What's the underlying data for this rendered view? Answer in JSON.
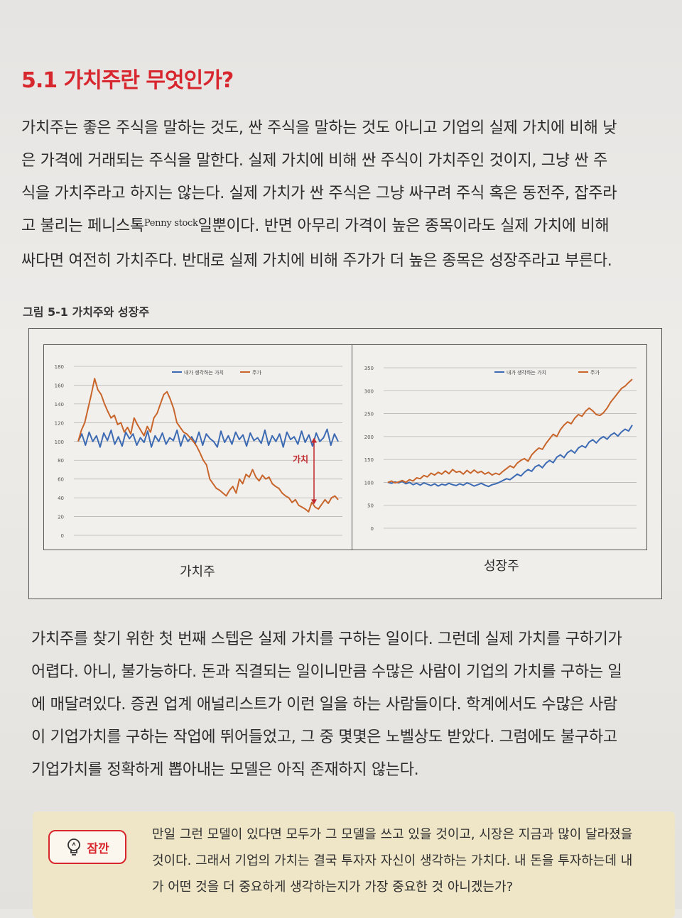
{
  "heading": "5.1 가치주란 무엇인가?",
  "para1": [
    "가치주는 좋은 주식을 말하는 것도, 싼 주식을 말하는 것도 아니고 기업의 실제 가치에 비해 낮",
    "은 가격에 거래되는 주식을 말한다. 실제 가치에 비해 싼 주식이 가치주인 것이지, 그냥 싼 주",
    "식을 가치주라고 하지는 않는다. 실제 가치가 싼 주식은 그냥 싸구려 주식 혹은 동전주, 잡주라"
  ],
  "para1_line4": {
    "before": "고 불리는 페니스톡",
    "sup": "Penny stock",
    "after": "일뿐이다. 반면 아무리 가격이 높은 종목이라도 실제 가치에 비해"
  },
  "para1_line5": "싸다면 여전히 가치주다. 반대로 실제 가치에 비해 주가가 더 높은 종목은 성장주라고 부른다.",
  "figure_caption": "그림 5-1 가치주와 성장주",
  "chart_data": [
    {
      "type": "line",
      "label": "가치주",
      "annotation": "가치",
      "ylim": [
        0,
        180
      ],
      "yticks": [
        0,
        20,
        40,
        60,
        80,
        100,
        120,
        140,
        160,
        180
      ],
      "legend": "top",
      "series": [
        {
          "name": "내가 생각하는 가치",
          "color": "#3d6bb3",
          "values": [
            100,
            108,
            96,
            110,
            100,
            106,
            94,
            109,
            101,
            112,
            97,
            105,
            95,
            110,
            103,
            108,
            96,
            104,
            99,
            111,
            94,
            106,
            100,
            109,
            97,
            104,
            101,
            112,
            95,
            107,
            100,
            105,
            98,
            110,
            96,
            108,
            103,
            100,
            94,
            111,
            99,
            106,
            97,
            110,
            102,
            107,
            95,
            109,
            101,
            104,
            98,
            112,
            96,
            106,
            100,
            108,
            94,
            110,
            102,
            105,
            97,
            111,
            99,
            107,
            95,
            109,
            100,
            104,
            113,
            96,
            108,
            100
          ]
        },
        {
          "name": "주가",
          "color": "#c8652a",
          "values": [
            100,
            112,
            120,
            135,
            150,
            167,
            155,
            150,
            140,
            132,
            125,
            128,
            118,
            120,
            110,
            115,
            108,
            125,
            118,
            112,
            106,
            116,
            110,
            125,
            130,
            140,
            150,
            153,
            145,
            135,
            120,
            115,
            110,
            108,
            104,
            100,
            95,
            88,
            80,
            75,
            60,
            55,
            50,
            48,
            45,
            42,
            48,
            52,
            45,
            60,
            55,
            65,
            62,
            70,
            62,
            58,
            64,
            60,
            62,
            55,
            52,
            50,
            45,
            42,
            40,
            35,
            38,
            32,
            30,
            28,
            25,
            35,
            30,
            28,
            33,
            38,
            34,
            40,
            42,
            38
          ]
        }
      ]
    },
    {
      "type": "line",
      "label": "성장주",
      "ylim": [
        0,
        350
      ],
      "yticks": [
        0,
        50,
        100,
        150,
        200,
        250,
        300,
        350
      ],
      "legend": "top",
      "series": [
        {
          "name": "내가 생각하는 가치",
          "color": "#3d6bb3",
          "values": [
            100,
            98,
            101,
            99,
            102,
            97,
            100,
            95,
            98,
            94,
            99,
            96,
            93,
            97,
            92,
            96,
            94,
            98,
            95,
            93,
            97,
            94,
            99,
            96,
            92,
            95,
            98,
            94,
            91,
            95,
            97,
            100,
            104,
            108,
            106,
            112,
            118,
            114,
            122,
            128,
            124,
            134,
            138,
            132,
            142,
            148,
            143,
            155,
            160,
            154,
            165,
            170,
            164,
            175,
            180,
            176,
            188,
            193,
            186,
            195,
            200,
            194,
            203,
            208,
            201,
            210,
            216,
            212,
            225
          ]
        },
        {
          "name": "주가",
          "color": "#c8652a",
          "values": [
            100,
            103,
            99,
            101,
            104,
            100,
            106,
            103,
            110,
            108,
            115,
            112,
            120,
            116,
            122,
            118,
            125,
            119,
            128,
            122,
            124,
            118,
            126,
            120,
            127,
            121,
            124,
            118,
            122,
            116,
            120,
            117,
            124,
            130,
            136,
            132,
            142,
            148,
            152,
            146,
            160,
            168,
            175,
            172,
            185,
            195,
            205,
            200,
            215,
            225,
            232,
            228,
            240,
            248,
            244,
            255,
            262,
            256,
            248,
            246,
            252,
            262,
            275,
            285,
            295,
            305,
            310,
            318,
            325
          ]
        }
      ]
    }
  ],
  "para2": [
    "가치주를 찾기 위한 첫 번째 스텝은 실제 가치를 구하는 일이다. 그런데 실제 가치를 구하기가",
    "어렵다. 아니, 불가능하다. 돈과 직결되는 일이니만큼 수많은 사람이 기업의 가치를 구하는 일",
    "에 매달려있다. 증권 업계 애널리스트가 이런 일을 하는 사람들이다. 학계에서도 수많은 사람",
    "이 기업가치를 구하는 작업에 뛰어들었고, 그 중 몇몇은 노벨상도 받았다. 그럼에도 불구하고",
    "기업가치를 정확하게 뽑아내는 모델은 아직 존재하지 않는다."
  ],
  "tip": {
    "badge": "잠깐",
    "icon": "lightbulb-icon",
    "lines": [
      "만일 그런 모델이 있다면 모두가 그 모델을 쓰고 있을 것이고, 시장은 지금과 많이 달라졌을",
      "것이다. 그래서 기업의 가치는 결국 투자자 자신이 생각하는 가치다. 내 돈을 투자하는데 내",
      "가 어떤 것을 더 중요하게 생각하는지가 가장 중요한 것 아니겠는가?"
    ]
  }
}
